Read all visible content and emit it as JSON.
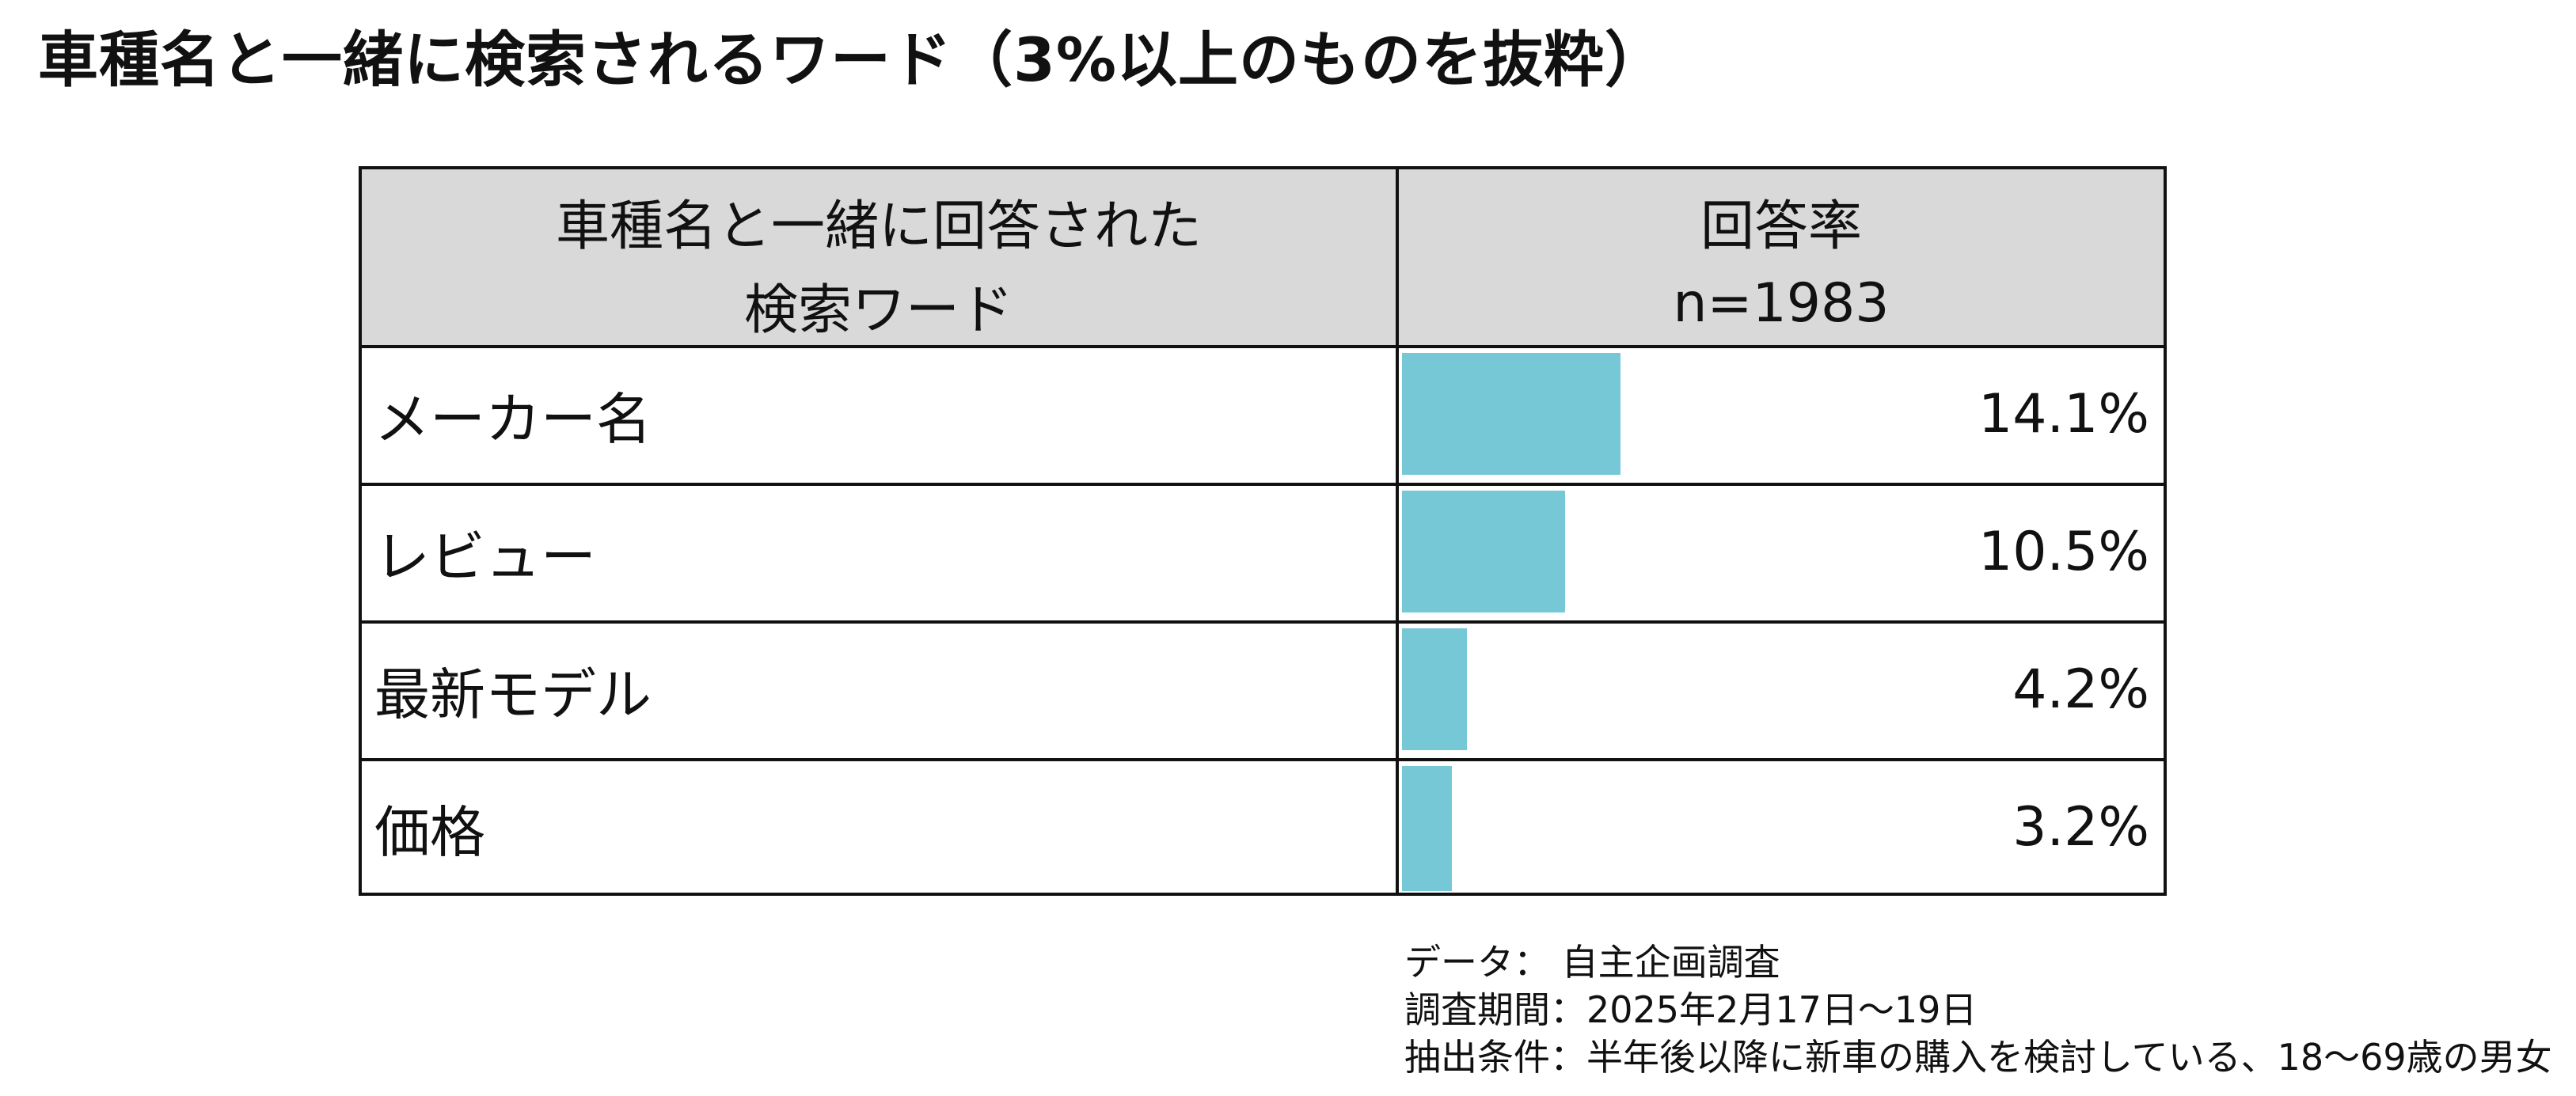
{
  "page": {
    "title": "車種名と一緒に検索されるワード（3%以上のものを抜粋）"
  },
  "table": {
    "header_left": [
      "車種名と一緒に回答された",
      "検索ワード"
    ],
    "header_right": [
      "回答率",
      "n=1983"
    ]
  },
  "chart_data": {
    "type": "bar",
    "orientation": "horizontal",
    "categories": [
      "メーカー名",
      "レビュー",
      "最新モデル",
      "価格"
    ],
    "values": [
      14.1,
      10.5,
      4.2,
      3.2
    ],
    "value_labels": [
      "14.1%",
      "10.5%",
      "4.2%",
      "3.2%"
    ],
    "unit": "%",
    "bar_color": "#77c8d7"
  },
  "notes": [
    "データ： 自主企画調査",
    "調査期間：2025年2月17日～19日",
    "抽出条件：半年後以降に新車の購入を検討している、18～69歳の男女"
  ]
}
